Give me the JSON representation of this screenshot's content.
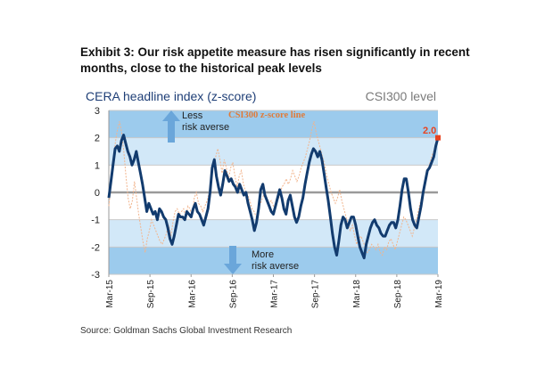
{
  "title": "Exhibit 3: Our risk appetite measure has risen significantly in recent months, close to the historical peak levels",
  "source": "Source: Goldman Sachs Global Investment Research",
  "colors": {
    "main_line": "#123b6e",
    "csi_line": "#f2b48c",
    "band_dark": "#9ccbed",
    "band_light": "#d2e8f8",
    "arrow": "#6aa6da",
    "callout_text": "#e8431f",
    "marker": "#e8431f",
    "tag_text": "#e07b39"
  },
  "chart_data": {
    "type": "line",
    "ylabel_left": "CERA headline index (z-score)",
    "ylabel_right": "CSI300 level",
    "ylim": [
      -3,
      3
    ],
    "yticks": [
      3,
      2,
      1,
      0,
      -1,
      -2,
      -3
    ],
    "xticks": [
      "Mar-15",
      "Sep-15",
      "Mar-16",
      "Sep-16",
      "Mar-17",
      "Sep-17",
      "Mar-18",
      "Sep-18",
      "Mar-19"
    ],
    "annotations": {
      "less": [
        "Less",
        "risk averse"
      ],
      "more": [
        "More",
        "risk averse"
      ],
      "series_tag": "CSI300 z-score line",
      "callout": "2.0"
    },
    "series": [
      {
        "role": "main",
        "values": [
          -0.2,
          0.4,
          1.0,
          1.6,
          1.7,
          1.5,
          1.9,
          2.1,
          1.8,
          1.5,
          1.3,
          1.0,
          1.2,
          1.5,
          1.1,
          0.7,
          0.3,
          -0.2,
          -0.7,
          -0.4,
          -0.6,
          -0.8,
          -0.7,
          -1.0,
          -0.6,
          -0.7,
          -0.9,
          -1.0,
          -1.3,
          -1.7,
          -1.9,
          -1.6,
          -1.2,
          -0.8,
          -0.9,
          -0.9,
          -1.0,
          -0.7,
          -0.8,
          -0.9,
          -0.6,
          -0.4,
          -0.7,
          -0.8,
          -1.0,
          -1.2,
          -0.9,
          -0.6,
          0.0,
          0.9,
          1.2,
          0.6,
          0.2,
          -0.1,
          0.3,
          0.8,
          0.6,
          0.4,
          0.5,
          0.3,
          0.2,
          0.0,
          0.3,
          0.1,
          -0.1,
          0.0,
          -0.4,
          -0.7,
          -1.0,
          -1.4,
          -1.1,
          -0.6,
          0.1,
          0.3,
          -0.1,
          -0.3,
          -0.5,
          -0.7,
          -0.8,
          -0.5,
          -0.2,
          0.1,
          -0.2,
          -0.6,
          -0.8,
          -0.3,
          -0.1,
          -0.5,
          -0.9,
          -1.1,
          -0.9,
          -0.5,
          -0.2,
          0.3,
          0.7,
          1.1,
          1.4,
          1.6,
          1.5,
          1.3,
          1.5,
          1.2,
          0.7,
          0.2,
          -0.3,
          -0.9,
          -1.5,
          -2.0,
          -2.3,
          -1.8,
          -1.2,
          -0.9,
          -1.0,
          -1.3,
          -1.1,
          -0.9,
          -0.9,
          -1.2,
          -1.6,
          -2.0,
          -2.2,
          -2.4,
          -1.9,
          -1.6,
          -1.3,
          -1.1,
          -1.0,
          -1.2,
          -1.3,
          -1.5,
          -1.6,
          -1.6,
          -1.4,
          -1.2,
          -1.1,
          -1.1,
          -1.3,
          -1.0,
          -0.5,
          0.1,
          0.5,
          0.5,
          0.0,
          -0.6,
          -1.0,
          -1.2,
          -1.3,
          -0.9,
          -0.5,
          0.0,
          0.4,
          0.8,
          0.9,
          1.1,
          1.3,
          1.7,
          2.0
        ]
      },
      {
        "role": "csi300",
        "values": [
          -0.5,
          0.2,
          1.0,
          1.8,
          2.3,
          2.6,
          2.2,
          1.5,
          0.6,
          -0.2,
          -0.6,
          -0.3,
          0.4,
          -0.2,
          -0.8,
          -1.3,
          -1.8,
          -2.2,
          -1.7,
          -1.4,
          -1.0,
          -1.2,
          -1.4,
          -1.6,
          -1.8,
          -1.9,
          -1.7,
          -1.5,
          -1.2,
          -1.6,
          -1.1,
          -0.7,
          -0.6,
          -0.8,
          -0.7,
          -0.6,
          -0.9,
          -0.5,
          -0.6,
          -0.9,
          -0.2,
          0.0,
          -0.4,
          -0.5,
          -0.7,
          -0.5,
          -0.3,
          0.0,
          0.5,
          1.0,
          1.3,
          1.6,
          1.2,
          0.7,
          1.2,
          0.9,
          0.5,
          0.9,
          1.1,
          0.6,
          0.2,
          0.6,
          0.8,
          0.3,
          0.0,
          -0.1,
          -0.3,
          -0.6,
          -0.7,
          -0.9,
          -0.6,
          -0.4,
          -0.2,
          0.0,
          -0.2,
          -0.4,
          -0.3,
          -0.5,
          -0.6,
          -0.3,
          -0.1,
          0.2,
          0.3,
          0.5,
          0.3,
          0.5,
          0.8,
          0.6,
          0.4,
          0.6,
          0.9,
          1.1,
          1.3,
          1.6,
          1.9,
          2.3,
          2.6,
          2.2,
          1.9,
          1.6,
          1.3,
          1.0,
          0.6,
          0.3,
          0.0,
          -0.2,
          -0.4,
          -0.2,
          0.1,
          -0.3,
          -0.6,
          -0.9,
          -1.2,
          -1.4,
          -1.2,
          -1.6,
          -1.9,
          -1.7,
          -1.6,
          -1.8,
          -2.0,
          -2.2,
          -2.1,
          -1.9,
          -2.0,
          -2.1,
          -1.9,
          -2.2,
          -2.3,
          -2.0,
          -2.1,
          -1.8,
          -1.7,
          -1.9,
          -2.1,
          -1.8,
          -1.5,
          -1.2,
          -0.9,
          -1.0,
          -1.2,
          -1.4,
          -1.6,
          -1.3,
          -1.0,
          -0.6,
          -0.3,
          0.0,
          0.4,
          0.7,
          1.0,
          1.3,
          1.5,
          1.7,
          1.9
        ]
      }
    ]
  }
}
